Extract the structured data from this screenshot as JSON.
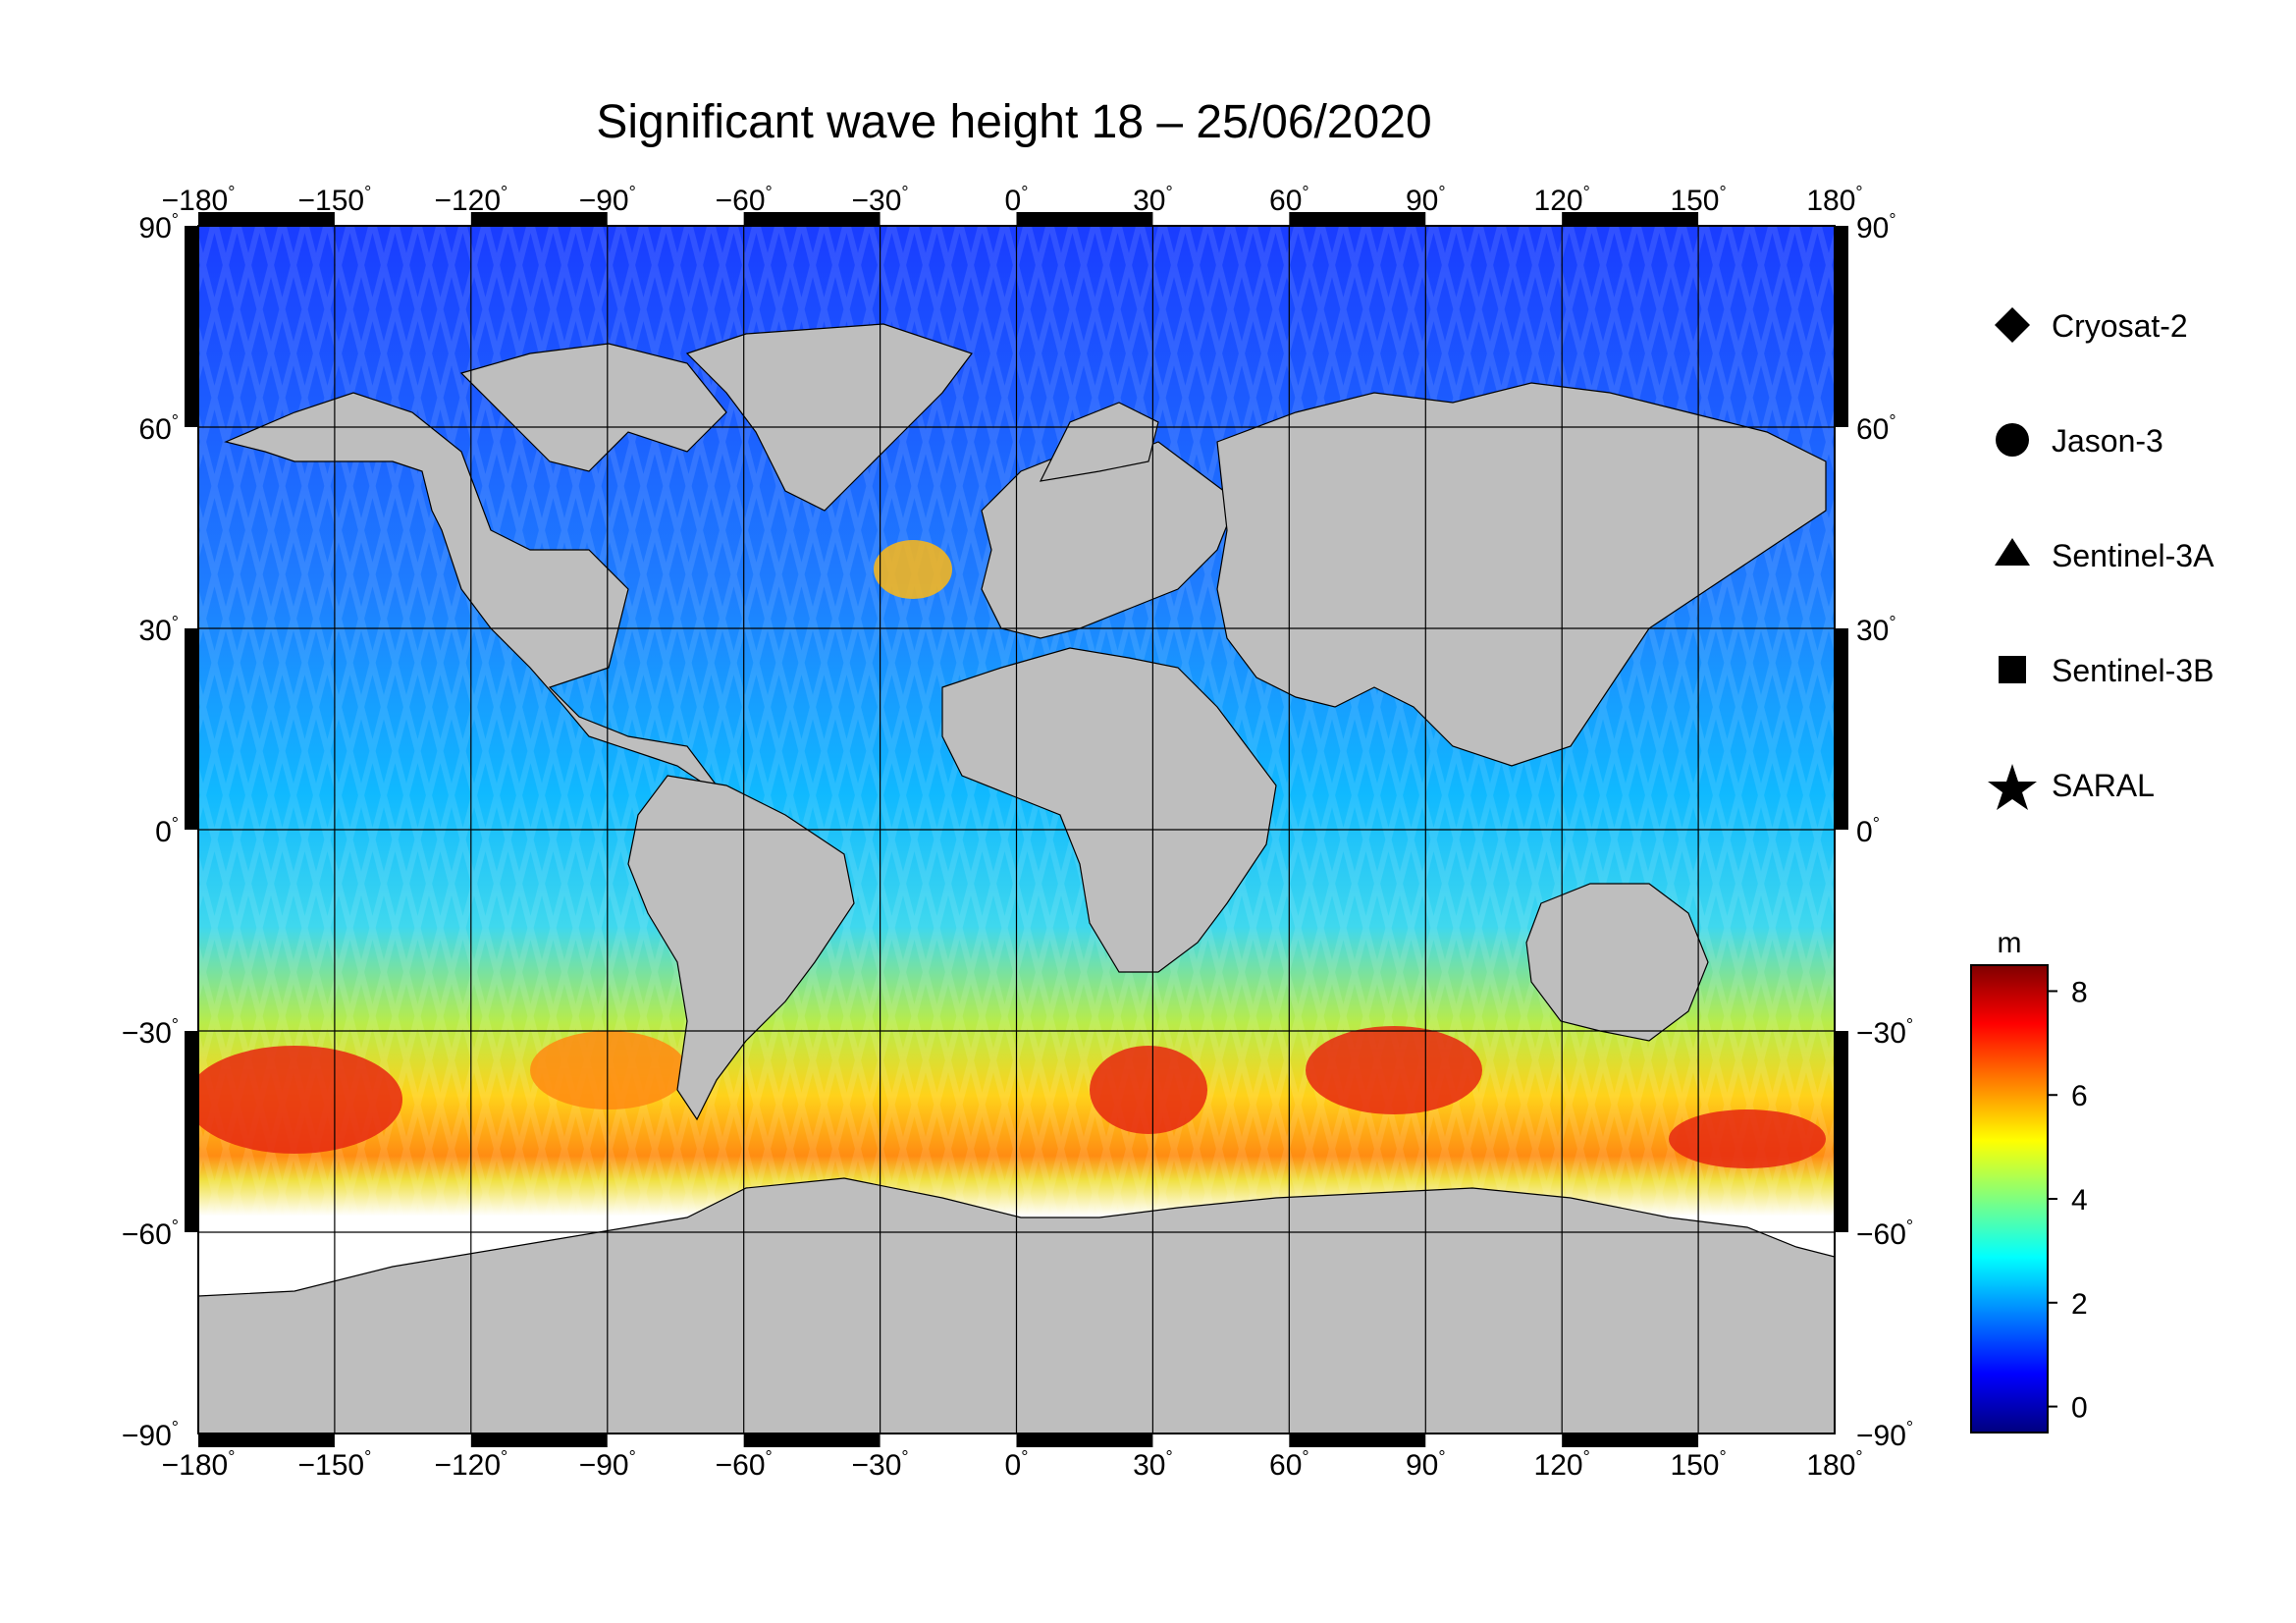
{
  "title": "Significant wave height 18 – 25/06/2020",
  "map": {
    "lon_ticks": [
      {
        "value": -180,
        "label": "−180"
      },
      {
        "value": -150,
        "label": "−150"
      },
      {
        "value": -120,
        "label": "−120"
      },
      {
        "value": -90,
        "label": "−90"
      },
      {
        "value": -60,
        "label": "−60"
      },
      {
        "value": -30,
        "label": "−30"
      },
      {
        "value": 0,
        "label": "0"
      },
      {
        "value": 30,
        "label": "30"
      },
      {
        "value": 60,
        "label": "60"
      },
      {
        "value": 90,
        "label": "90"
      },
      {
        "value": 120,
        "label": "120"
      },
      {
        "value": 150,
        "label": "150"
      },
      {
        "value": 180,
        "label": "180"
      }
    ],
    "lat_ticks": [
      {
        "value": 90,
        "label": "90"
      },
      {
        "value": 60,
        "label": "60"
      },
      {
        "value": 30,
        "label": "30"
      },
      {
        "value": 0,
        "label": "0"
      },
      {
        "value": -30,
        "label": "−30"
      },
      {
        "value": -60,
        "label": "−60"
      },
      {
        "value": -90,
        "label": "−90"
      }
    ],
    "degree_symbol": "°",
    "colors": {
      "land": "#bebebe",
      "ice": "#ffffff",
      "grid": "#000000"
    }
  },
  "legend": {
    "items": [
      {
        "label": "Cryosat-2",
        "symbol": "diamond"
      },
      {
        "label": "Jason-3",
        "symbol": "circle"
      },
      {
        "label": "Sentinel-3A",
        "symbol": "triangle"
      },
      {
        "label": "Sentinel-3B",
        "symbol": "square"
      },
      {
        "label": "SARAL",
        "symbol": "star"
      }
    ]
  },
  "colorbar": {
    "unit": "m",
    "min": -0.5,
    "max": 8.5,
    "ticks": [
      {
        "value": 8,
        "label": "8"
      },
      {
        "value": 6,
        "label": "6"
      },
      {
        "value": 4,
        "label": "4"
      },
      {
        "value": 2,
        "label": "2"
      },
      {
        "value": 0,
        "label": "0"
      }
    ],
    "colors": [
      "#00007f",
      "#0000ff",
      "#007fff",
      "#00ffff",
      "#7fff7f",
      "#ffff00",
      "#ff7f00",
      "#ff0000",
      "#7f0000"
    ]
  }
}
